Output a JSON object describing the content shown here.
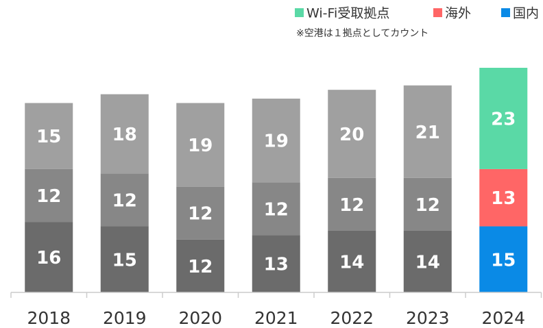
{
  "chart_data": {
    "type": "stacked-bar",
    "annotation": "※空港は１拠点としてカウント",
    "categories": [
      "2018",
      "2019",
      "2020",
      "2021",
      "2022",
      "2023",
      "2024"
    ],
    "series": [
      {
        "name": "国内",
        "color": "#0a8ae6",
        "colors": [
          "#6b6b6b",
          "#6b6b6b",
          "#6b6b6b",
          "#6b6b6b",
          "#6b6b6b",
          "#6b6b6b",
          "#0a8ae6"
        ],
        "values": [
          16,
          15,
          12,
          13,
          14,
          14,
          15
        ]
      },
      {
        "name": "海外",
        "color": "#ff6666",
        "colors": [
          "#878787",
          "#878787",
          "#878787",
          "#878787",
          "#878787",
          "#878787",
          "#ff6666"
        ],
        "values": [
          12,
          12,
          12,
          12,
          12,
          12,
          13
        ]
      },
      {
        "name": "Wi-Fi受取拠点",
        "color": "#5ad9a6",
        "colors": [
          "#a0a0a0",
          "#a0a0a0",
          "#a0a0a0",
          "#a0a0a0",
          "#a0a0a0",
          "#a0a0a0",
          "#5ad9a6"
        ],
        "values": [
          15,
          18,
          19,
          19,
          20,
          21,
          23
        ]
      }
    ]
  }
}
